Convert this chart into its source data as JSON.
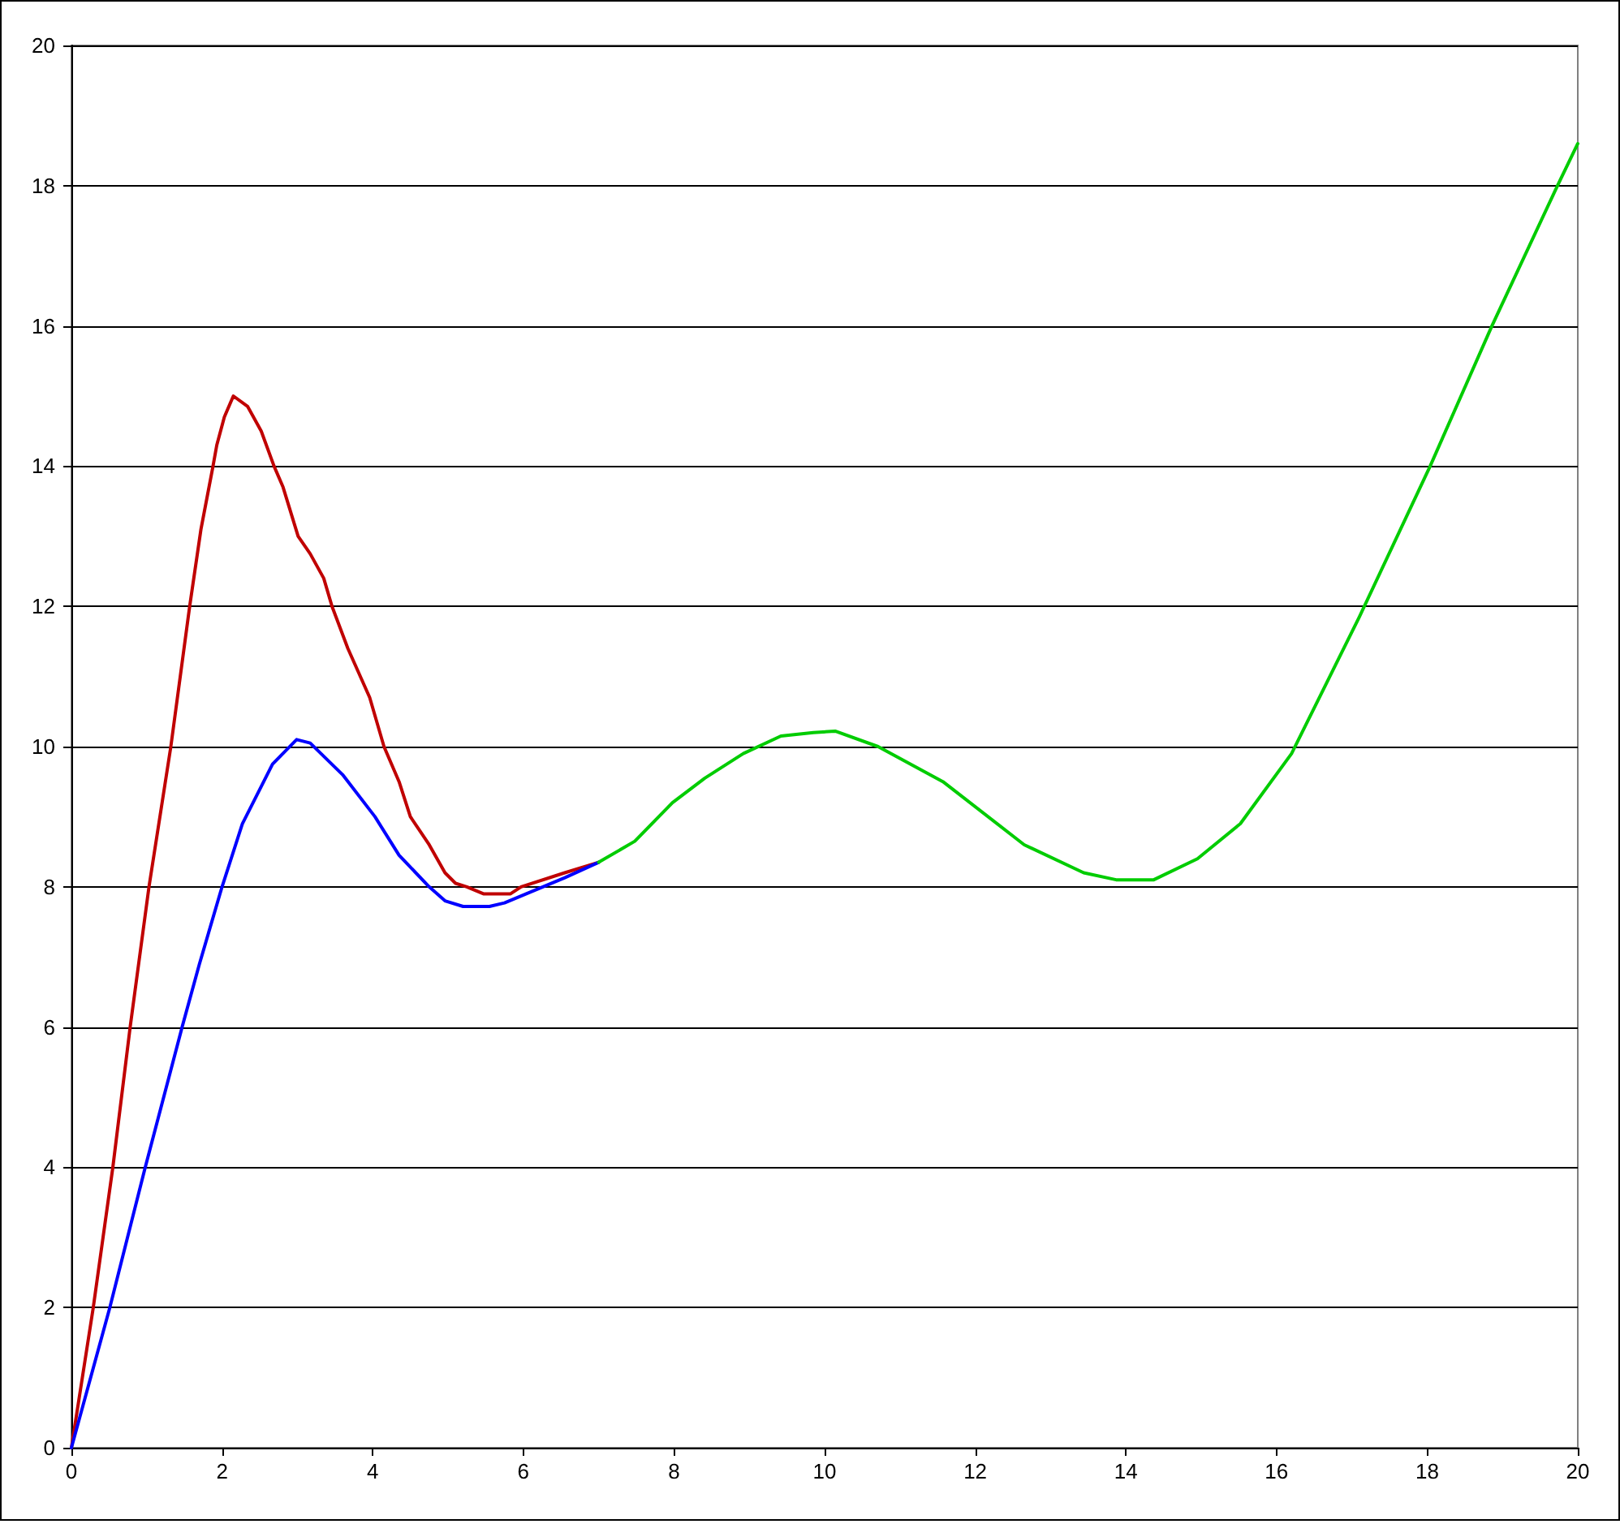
{
  "chart_data": {
    "type": "line",
    "xlim": [
      0,
      20
    ],
    "ylim": [
      0,
      20
    ],
    "xticks": [
      0,
      2,
      4,
      6,
      8,
      10,
      12,
      14,
      16,
      18,
      20
    ],
    "yticks": [
      0,
      2,
      4,
      6,
      8,
      10,
      12,
      14,
      16,
      18,
      20
    ],
    "grid": "y",
    "marker": "none",
    "line_style": "solid",
    "series": [
      {
        "color": "#c00000",
        "x": [
          0,
          0.29,
          0.55,
          0.78,
          1.03,
          1.32,
          1.57,
          1.72,
          1.88,
          1.93,
          2.03,
          2.15,
          2.34,
          2.52,
          2.69,
          2.81,
          3.01,
          3.17,
          3.35,
          3.46,
          3.67,
          3.96,
          4.15,
          4.35,
          4.5,
          4.75,
          4.96,
          5.1,
          5.25,
          5.47,
          5.83,
          5.97,
          6.55,
          7
        ],
        "values": [
          0,
          2,
          4,
          6,
          8,
          10,
          12,
          13.1,
          14,
          14.3,
          14.7,
          15,
          14.85,
          14.5,
          14,
          13.7,
          13,
          12.75,
          12.4,
          12,
          11.4,
          10.7,
          10,
          9.5,
          9,
          8.6,
          8.2,
          8.05,
          8,
          7.9,
          7.9,
          8,
          8.2,
          8.35
        ]
      },
      {
        "color": "#0000ff",
        "x": [
          0,
          0.51,
          0.98,
          1.47,
          1.7,
          2,
          2.27,
          2.67,
          2.99,
          3.17,
          3.6,
          4.03,
          4.35,
          4.75,
          4.96,
          5.2,
          5.55,
          5.75,
          6.04,
          6.55,
          7
        ],
        "values": [
          0,
          2,
          4,
          6,
          6.9,
          8,
          8.9,
          9.75,
          10.1,
          10.05,
          9.6,
          9,
          8.45,
          8,
          7.8,
          7.72,
          7.72,
          7.77,
          7.9,
          8.13,
          8.35
        ]
      },
      {
        "color": "#00cc00",
        "x": [
          7,
          7.48,
          7.98,
          8.41,
          8.92,
          9.42,
          9.85,
          10.14,
          10.71,
          11.57,
          12.65,
          13.44,
          13.87,
          14.37,
          14.95,
          15.52,
          16.2,
          17.1,
          18.04,
          18.86,
          19.73,
          20
        ],
        "values": [
          8.35,
          8.65,
          9.2,
          9.55,
          9.9,
          10.15,
          10.2,
          10.22,
          10,
          9.5,
          8.6,
          8.2,
          8.1,
          8.1,
          8.4,
          8.9,
          9.9,
          11.85,
          14,
          16,
          18,
          18.6
        ]
      }
    ]
  }
}
